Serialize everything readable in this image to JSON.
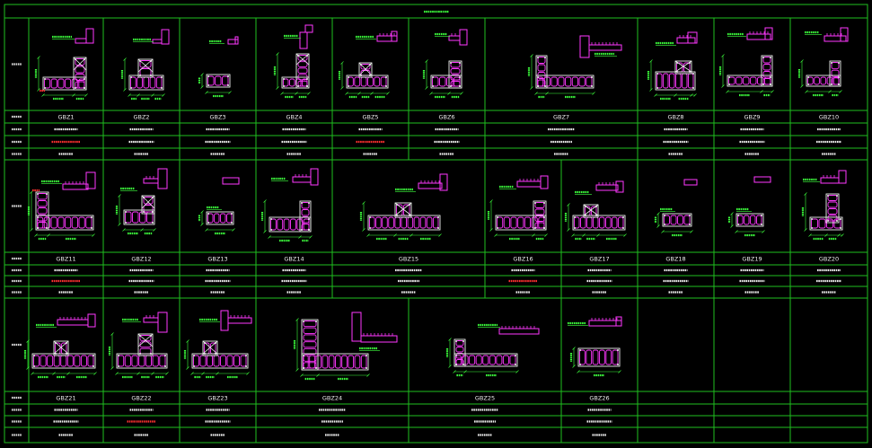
{
  "drawing": {
    "background": "#000000",
    "palette": {
      "grid": "#1fbf1f",
      "outline": "#f2f2f2",
      "stirrup": "#ff38ff",
      "dimension": "#3cff3c",
      "text": "#f0f0f0",
      "label": "#d9d9d9",
      "highlight": "#ff3030"
    },
    "bands": [
      {
        "columns": [
          {
            "id": "GBZ1",
            "bars_color": "#ff3030"
          },
          {
            "id": "GBZ2"
          },
          {
            "id": "GBZ3"
          },
          {
            "id": "GBZ4"
          },
          {
            "id": "GBZ5",
            "bars_color": "#ff3030"
          },
          {
            "id": "GBZ6"
          },
          {
            "id": "GBZ7"
          },
          {
            "id": "GBZ8"
          },
          {
            "id": "GBZ9"
          },
          {
            "id": "GBZ10"
          }
        ]
      },
      {
        "columns": [
          {
            "id": "GBZ11",
            "bars_color": "#ff3030"
          },
          {
            "id": "GBZ12"
          },
          {
            "id": "GBZ13"
          },
          {
            "id": "GBZ14"
          },
          {
            "id": "GBZ15"
          },
          {
            "id": "GBZ16",
            "bars_color": "#ff3030"
          },
          {
            "id": "GBZ17"
          },
          {
            "id": "GBZ18"
          },
          {
            "id": "GBZ19"
          },
          {
            "id": "GBZ20"
          }
        ]
      },
      {
        "columns": [
          {
            "id": "GBZ21"
          },
          {
            "id": "GBZ22",
            "bars_color": "#ff3030"
          },
          {
            "id": "GBZ23"
          },
          {
            "id": "GBZ24"
          },
          {
            "id": "GBZ25"
          },
          {
            "id": "GBZ26"
          }
        ]
      }
    ]
  }
}
